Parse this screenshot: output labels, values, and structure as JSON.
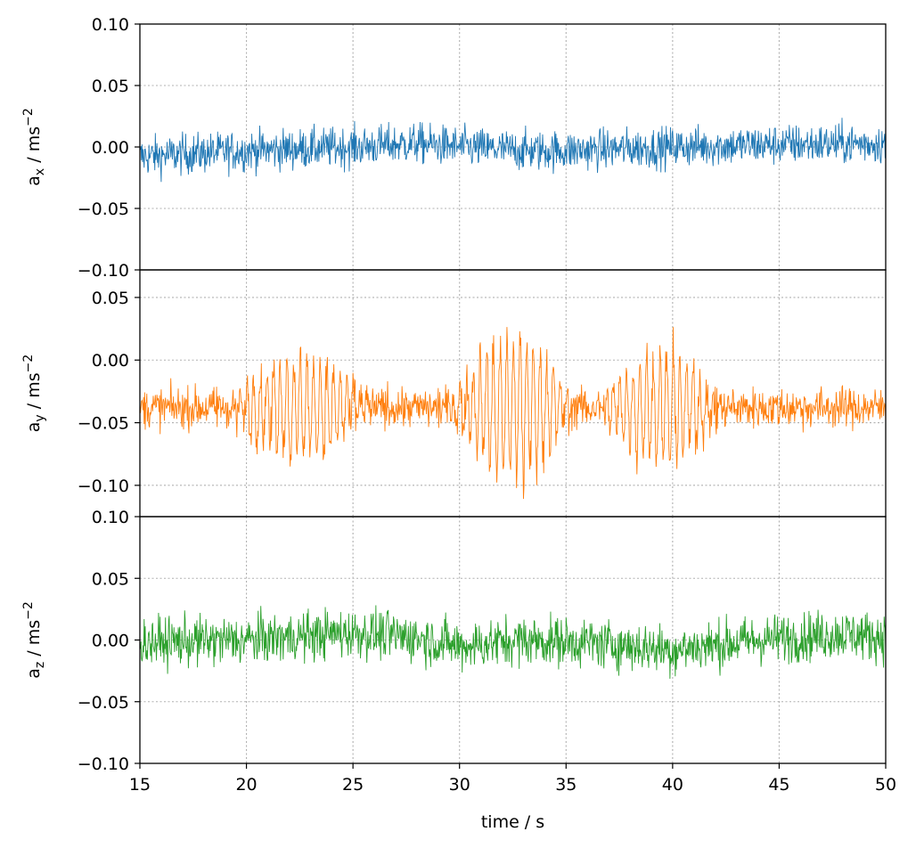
{
  "chart_data": [
    {
      "type": "line",
      "ylabel": "a",
      "ylabel_sub": "x",
      "ylabel_unit": " / ms",
      "ylabel_sup": "−2",
      "ylim": [
        -0.1,
        0.1
      ],
      "yticks": [
        -0.1,
        -0.05,
        0.0,
        0.05,
        0.1
      ],
      "ytick_labels": [
        "−0.10",
        "−0.05",
        "0.00",
        "0.05",
        "0.10"
      ],
      "series": [
        {
          "color": "#1f77b4",
          "x_start": 15,
          "x_end": 50,
          "mean_points": [
            [
              15,
              -0.008
            ],
            [
              20,
              -0.003
            ],
            [
              25,
              0.0
            ],
            [
              28,
              0.003
            ],
            [
              30,
              0.0
            ],
            [
              33,
              -0.003
            ],
            [
              35,
              -0.003
            ],
            [
              40,
              0.0
            ],
            [
              45,
              0.002
            ],
            [
              50,
              0.003
            ]
          ],
          "noise_amplitude": 0.009
        }
      ]
    },
    {
      "type": "line",
      "ylabel": "a",
      "ylabel_sub": "y",
      "ylabel_unit": " / ms",
      "ylabel_sup": "−2",
      "ylim": [
        -0.125,
        0.072
      ],
      "yticks": [
        -0.1,
        -0.05,
        0.0,
        0.05
      ],
      "ytick_labels": [
        "−0.10",
        "−0.05",
        "0.00",
        "0.05"
      ],
      "series": [
        {
          "color": "#ff7f0e",
          "x_start": 15,
          "x_end": 50,
          "baseline": -0.038,
          "noise_amplitude": 0.008,
          "bursts": [
            {
              "center": 22.5,
              "halfwidth": 3.5,
              "amplitude": 0.042
            },
            {
              "center": 32.5,
              "halfwidth": 3.0,
              "amplitude": 0.06
            },
            {
              "center": 39.5,
              "halfwidth": 3.0,
              "amplitude": 0.045
            }
          ]
        }
      ]
    },
    {
      "type": "line",
      "ylabel": "a",
      "ylabel_sub": "z",
      "ylabel_unit": " / ms",
      "ylabel_sup": "−2",
      "xlabel": "time / s",
      "xlim": [
        15,
        50
      ],
      "xticks": [
        15,
        20,
        25,
        30,
        35,
        40,
        45,
        50
      ],
      "xtick_labels": [
        "15",
        "20",
        "25",
        "30",
        "35",
        "40",
        "45",
        "50"
      ],
      "ylim": [
        -0.1,
        0.1
      ],
      "yticks": [
        -0.1,
        -0.05,
        0.0,
        0.05,
        0.1
      ],
      "ytick_labels": [
        "−0.10",
        "−0.05",
        "0.00",
        "0.05",
        "0.10"
      ],
      "series": [
        {
          "color": "#2ca02c",
          "x_start": 15,
          "x_end": 50,
          "mean_points": [
            [
              15,
              -0.002
            ],
            [
              20,
              0.0
            ],
            [
              25,
              0.006
            ],
            [
              28,
              0.002
            ],
            [
              30,
              -0.005
            ],
            [
              33,
              0.0
            ],
            [
              36,
              -0.002
            ],
            [
              40,
              -0.008
            ],
            [
              44,
              0.0
            ],
            [
              48,
              0.005
            ],
            [
              50,
              0.002
            ]
          ],
          "noise_amplitude": 0.011
        }
      ]
    }
  ],
  "grid": true,
  "xlim": [
    15,
    50
  ]
}
